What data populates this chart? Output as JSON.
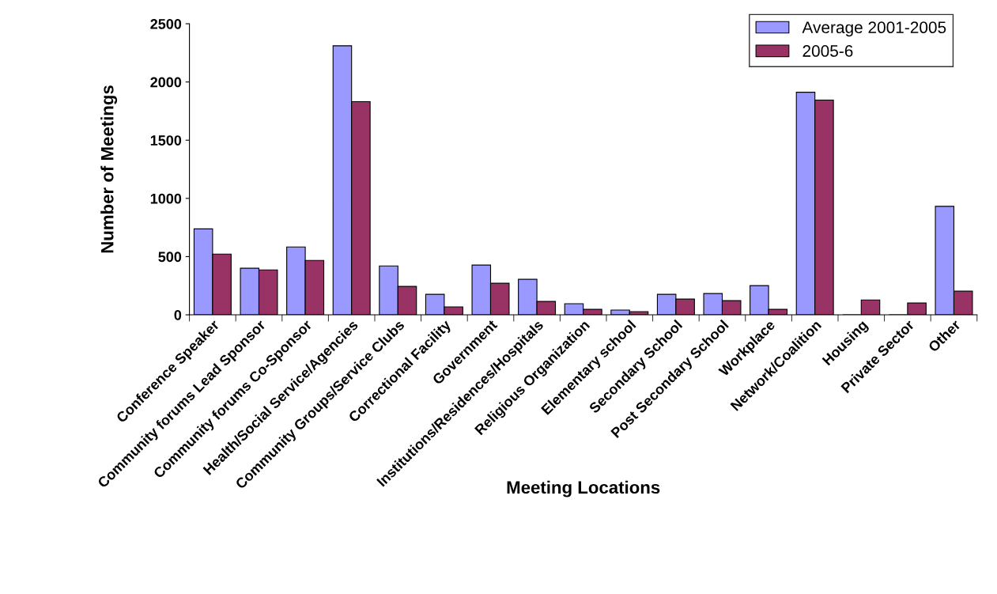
{
  "chart_data": {
    "type": "bar",
    "xlabel": "Meeting Locations",
    "ylabel": "Number of Meetings",
    "categories": [
      "Conference Speaker",
      "Community forums Lead Sponsor",
      "Community forums Co-Sponsor",
      "Health/Social Service/Agencies",
      "Community Groups/Service Clubs",
      "Correctional Facility",
      "Government",
      "Institutions/Residences/Hospitals",
      "Religious Organization",
      "Elementary school",
      "Secondary School",
      "Post Secondary School",
      "Workplace",
      "Network/Coalition",
      "Housing",
      "Private Sector",
      "Other"
    ],
    "series": [
      {
        "name": "Average 2001-2005",
        "color": "#9999ff",
        "values": [
          738,
          400,
          583,
          2311,
          420,
          176,
          427,
          305,
          95,
          41,
          176,
          183,
          251,
          1912,
          0,
          0,
          932
        ]
      },
      {
        "name": "2005-6",
        "color": "#993366",
        "values": [
          522,
          386,
          467,
          1831,
          244,
          68,
          271,
          115,
          47,
          27,
          135,
          122,
          47,
          1845,
          128,
          101,
          203
        ]
      }
    ],
    "ylim": [
      0,
      2500
    ],
    "yticks": [
      0,
      500,
      1000,
      1500,
      2000,
      2500
    ],
    "grid": false,
    "legend": "top right"
  }
}
